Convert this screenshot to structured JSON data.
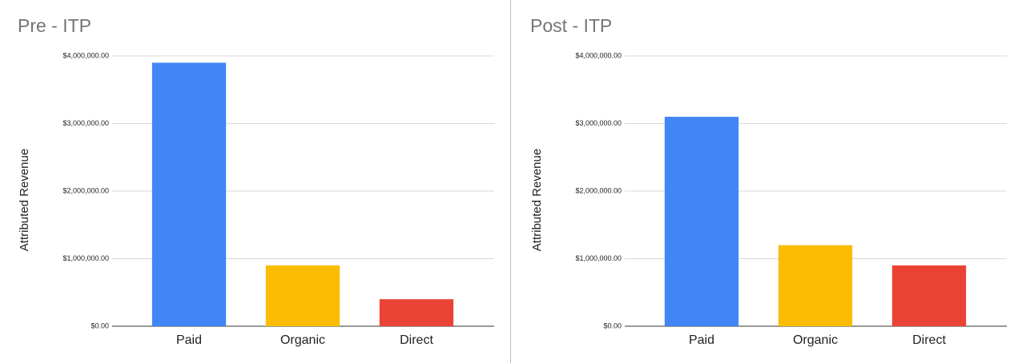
{
  "chart_data": [
    {
      "type": "bar",
      "title": "Pre - ITP",
      "y_label": "Attributed Revenue",
      "categories": [
        "Paid",
        "Organic",
        "Direct"
      ],
      "values": [
        3900000,
        900000,
        400000
      ],
      "colors": [
        "#4285f4",
        "#fbbc04",
        "#ea4335"
      ],
      "ylim": [
        0,
        4000000
      ],
      "yticks": [
        {
          "value": 0,
          "label": "$0.00"
        },
        {
          "value": 1000000,
          "label": "$1,000,000.00"
        },
        {
          "value": 2000000,
          "label": "$2,000,000.00"
        },
        {
          "value": 3000000,
          "label": "$3,000,000.00"
        },
        {
          "value": 4000000,
          "label": "$4,000,000.00"
        }
      ],
      "grid": true
    },
    {
      "type": "bar",
      "title": "Post - ITP",
      "y_label": "Attributed Revenue",
      "categories": [
        "Paid",
        "Organic",
        "Direct"
      ],
      "values": [
        3100000,
        1200000,
        900000
      ],
      "colors": [
        "#4285f4",
        "#fbbc04",
        "#ea4335"
      ],
      "ylim": [
        0,
        4000000
      ],
      "yticks": [
        {
          "value": 0,
          "label": "$0.00"
        },
        {
          "value": 1000000,
          "label": "$1,000,000.00"
        },
        {
          "value": 2000000,
          "label": "$2,000,000.00"
        },
        {
          "value": 3000000,
          "label": "$3,000,000.00"
        },
        {
          "value": 4000000,
          "label": "$4,000,000.00"
        }
      ],
      "grid": true
    }
  ]
}
